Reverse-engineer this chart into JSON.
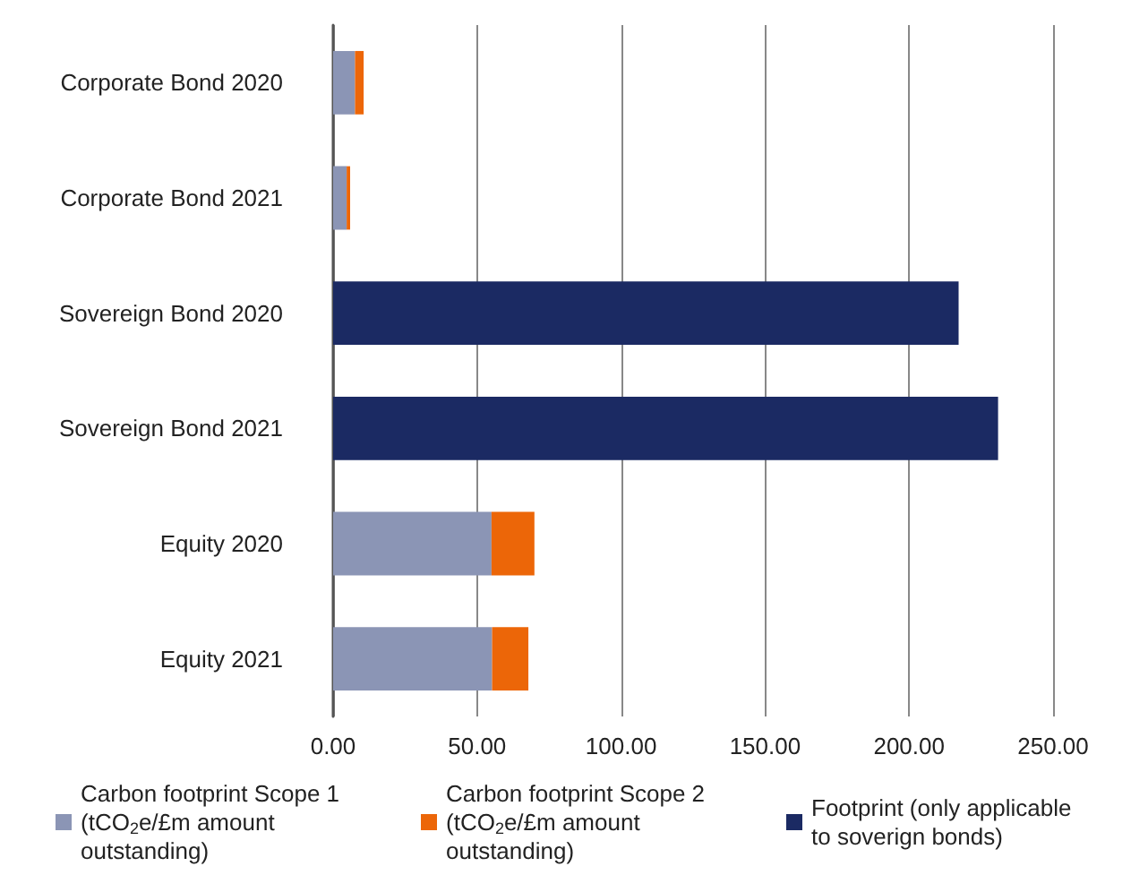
{
  "chart_data": {
    "type": "bar",
    "orientation": "horizontal",
    "stacked": true,
    "categories": [
      "Corporate Bond 2020",
      "Corporate Bond 2021",
      "Sovereign Bond 2020",
      "Sovereign Bond 2021",
      "Equity 2020",
      "Equity 2021"
    ],
    "series": [
      {
        "name": "Carbon footprint Scope 1 (tCO$_{2}$e/£m amount outstanding)",
        "color": "#8b95b5",
        "values": [
          7.6,
          4.7,
          null,
          null,
          55.0,
          55.2
        ]
      },
      {
        "name": "Carbon footprint Scope 2 (tCO$_{2}$e/£m amount outstanding)",
        "color": "#ec6608",
        "values": [
          3.0,
          1.2,
          null,
          null,
          14.9,
          12.6
        ]
      },
      {
        "name": "Footprint (only applicable to soverign bonds)",
        "color": "#1b2a63",
        "values": [
          null,
          null,
          217.2,
          230.9,
          null,
          null
        ]
      }
    ],
    "xlim": [
      0,
      250
    ],
    "xticks": [
      {
        "value": 0,
        "label": "0.00"
      },
      {
        "value": 50,
        "label": "50.00"
      },
      {
        "value": 100,
        "label": "100.00"
      },
      {
        "value": 150,
        "label": "150.00"
      },
      {
        "value": 200,
        "label": "200.00"
      },
      {
        "value": 250,
        "label": "250.00"
      }
    ],
    "grid": "x",
    "legend": "bottom"
  }
}
